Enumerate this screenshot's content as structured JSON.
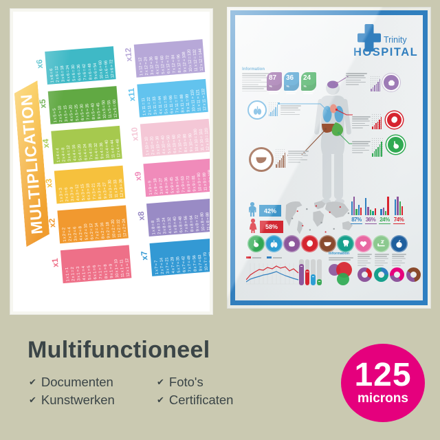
{
  "background_color": "#cac9b1",
  "left_poster": {
    "title": "MULTIPLICATION",
    "title_bg": [
      "#f9c53f",
      "#ef992e"
    ],
    "columns": [
      [
        {
          "label": "x6",
          "color": "#3fb9c6",
          "facts": [
            "1 x 6 = 6",
            "2 x 6 = 12",
            "3 x 6 = 18",
            "4 x 6 = 24",
            "5 x 6 = 30",
            "6 x 6 = 36",
            "7 x 6 = 42",
            "8 x 6 = 48",
            "9 x 6 = 54",
            "10 x 6 = 60",
            "11 x 6 = 66",
            "12 x 6 = 72"
          ]
        },
        {
          "label": "x5",
          "color": "#61a943",
          "facts": [
            "1 x 5 = 5",
            "2 x 5 = 10",
            "3 x 5 = 15",
            "4 x 5 = 20",
            "5 x 5 = 25",
            "6 x 5 = 30",
            "7 x 5 = 35",
            "8 x 5 = 40",
            "9 x 5 = 45",
            "10 x 5 = 50",
            "11 x 5 = 55",
            "12 x 5 = 60"
          ]
        },
        {
          "label": "x4",
          "color": "#a6c94e",
          "facts": [
            "1 x 4 = 4",
            "2 x 4 = 8",
            "3 x 4 = 12",
            "4 x 4 = 16",
            "5 x 4 = 20",
            "6 x 4 = 24",
            "7 x 4 = 28",
            "8 x 4 = 32",
            "9 x 4 = 36",
            "10 x 4 = 40",
            "11 x 4 = 44",
            "12 x 4 = 48"
          ]
        },
        {
          "label": "x3",
          "color": "#f6c13d",
          "facts": [
            "1 x 3 = 3",
            "2 x 3 = 6",
            "3 x 3 = 9",
            "4 x 3 = 12",
            "5 x 3 = 15",
            "6 x 3 = 18",
            "7 x 3 = 21",
            "8 x 3 = 24",
            "9 x 3 = 27",
            "10 x 3 = 30",
            "11 x 3 = 33",
            "12 x 3 = 36"
          ]
        },
        {
          "label": "x2",
          "color": "#f1992f",
          "facts": [
            "1 x 2 = 2",
            "2 x 2 = 4",
            "3 x 2 = 6",
            "4 x 2 = 8",
            "5 x 2 = 10",
            "6 x 2 = 12",
            "7 x 2 = 14",
            "8 x 2 = 16",
            "9 x 2 = 18",
            "10 x 2 = 20",
            "11 x 2 = 22",
            "12 x 2 = 24"
          ]
        },
        {
          "label": "x1",
          "color": "#ee7088",
          "facts": [
            "1 x 1 = 1",
            "2 x 1 = 2",
            "3 x 1 = 3",
            "4 x 1 = 4",
            "5 x 1 = 5",
            "6 x 1 = 6",
            "7 x 1 = 7",
            "8 x 1 = 8",
            "9 x 1 = 9",
            "10 x 1 = 10",
            "11 x 1 = 11",
            "12 x 1 = 12"
          ]
        }
      ],
      [
        {
          "label": "x12",
          "color": "#b7a8d8",
          "facts": [
            "1 x 12 = 12",
            "2 x 12 = 24",
            "3 x 12 = 36",
            "4 x 12 = 48",
            "5 x 12 = 60",
            "6 x 12 = 72",
            "7 x 12 = 84",
            "8 x 12 = 96",
            "9 x 12 = 108",
            "10 x 12 = 120",
            "11 x 12 = 132",
            "12 x 12 = 144"
          ]
        },
        {
          "label": "x11",
          "color": "#62c3ee",
          "facts": [
            "1 x 11 = 11",
            "2 x 11 = 22",
            "3 x 11 = 33",
            "4 x 11 = 44",
            "5 x 11 = 55",
            "6 x 11 = 66",
            "7 x 11 = 77",
            "8 x 11 = 88",
            "9 x 11 = 99",
            "10 x 11 = 110",
            "11 x 11 = 121",
            "12 x 11 = 132"
          ]
        },
        {
          "label": "x10",
          "color": "#f4c7d6",
          "facts": [
            "1 x 10 = 10",
            "2 x 10 = 20",
            "3 x 10 = 30",
            "4 x 10 = 40",
            "5 x 10 = 50",
            "6 x 10 = 60",
            "7 x 10 = 70",
            "8 x 10 = 80",
            "9 x 10 = 90",
            "10 x 10 = 100",
            "11 x 10 = 110",
            "12 x 10 = 120"
          ]
        },
        {
          "label": "x9",
          "color": "#f08bba",
          "facts": [
            "1 x 9 = 9",
            "2 x 9 = 18",
            "3 x 9 = 27",
            "4 x 9 = 36",
            "5 x 9 = 45",
            "6 x 9 = 54",
            "7 x 9 = 63",
            "8 x 9 = 72",
            "9 x 9 = 81",
            "10 x 9 = 90",
            "11 x 9 = 99",
            "12 x 9 = 108"
          ]
        },
        {
          "label": "x8",
          "color": "#998bc5",
          "facts": [
            "1 x 8 = 8",
            "2 x 8 = 16",
            "3 x 8 = 24",
            "4 x 8 = 32",
            "5 x 8 = 40",
            "6 x 8 = 48",
            "7 x 8 = 56",
            "8 x 8 = 64",
            "9 x 8 = 72",
            "10 x 8 = 80",
            "11 x 8 = 88",
            "12 x 8 = 96"
          ]
        },
        {
          "label": "x7",
          "color": "#3399d4",
          "facts": [
            "1 x 7 = 7",
            "2 x 7 = 14",
            "3 x 7 = 21",
            "4 x 7 = 28",
            "5 x 7 = 35",
            "6 x 7 = 42",
            "7 x 7 = 49",
            "8 x 7 = 56",
            "9 x 7 = 63",
            "10 x 7 = 70",
            "11 x 7 = 77",
            "12 x 7 = 84"
          ]
        }
      ]
    ]
  },
  "right_poster": {
    "frame_color": "#2e7fc1",
    "logo": {
      "name": "Trinity",
      "subtitle": "HOSPITAL",
      "color": "#2e7fc1"
    },
    "info_heading": "Information",
    "badges": [
      {
        "value": "87",
        "unit": "%",
        "color": "#8d569c"
      },
      {
        "value": "36",
        "unit": "%",
        "color": "#3a96cc"
      },
      {
        "value": "24",
        "unit": "%",
        "color": "#3caa57"
      }
    ],
    "gender": {
      "male_value": "42%",
      "male_color": "#3a96cc",
      "female_value": "58%",
      "female_color": "#d8232e"
    },
    "mini_stats": [
      {
        "value": "87%",
        "color": "#2e7fc1",
        "bars": [
          {
            "h": 20,
            "c": "#2e7fc1"
          },
          {
            "h": 27,
            "c": "#8d569c"
          },
          {
            "h": 9,
            "c": "#3caa57"
          },
          {
            "h": 15,
            "c": "#2e7fc1"
          },
          {
            "h": 11,
            "c": "#d8232e"
          }
        ]
      },
      {
        "value": "36%",
        "color": "#8d569c",
        "bars": [
          {
            "h": 25,
            "c": "#2e7fc1"
          },
          {
            "h": 12,
            "c": "#8d569c"
          },
          {
            "h": 8,
            "c": "#3caa57"
          },
          {
            "h": 6,
            "c": "#17a08c"
          },
          {
            "h": 10,
            "c": "#d8232e"
          }
        ]
      },
      {
        "value": "24%",
        "color": "#3caa57",
        "bars": [
          {
            "h": 9,
            "c": "#2e7fc1"
          },
          {
            "h": 11,
            "c": "#8d569c"
          },
          {
            "h": 6,
            "c": "#3caa57"
          },
          {
            "h": 27,
            "c": "#d8232e"
          }
        ]
      },
      {
        "value": "74%",
        "color": "#d8232e",
        "bars": [
          {
            "h": 23,
            "c": "#2e7fc1"
          },
          {
            "h": 27,
            "c": "#8d569c"
          },
          {
            "h": 20,
            "c": "#3caa57"
          },
          {
            "h": 13,
            "c": "#d8232e"
          }
        ]
      }
    ],
    "organ_icons": [
      {
        "name": "stomach",
        "color": "#2faa52"
      },
      {
        "name": "lungs",
        "color": "#2d9fd6"
      },
      {
        "name": "brain",
        "color": "#8d569c"
      },
      {
        "name": "organ",
        "color": "#d8232e"
      },
      {
        "name": "liver",
        "color": "#8a4a2c"
      },
      {
        "name": "tooth",
        "color": "#17a08c"
      },
      {
        "name": "heart",
        "color": "#e868a2"
      },
      {
        "name": "sleep",
        "color": "#8cc98f"
      },
      {
        "name": "apple",
        "color": "#1f5f9e"
      }
    ],
    "column_chart": {
      "track": "#d3d5d5",
      "bars": [
        {
          "h": 31,
          "c": "#8d569c"
        },
        {
          "h": 23,
          "c": "#d8232e"
        },
        {
          "h": 16,
          "c": "#2d9fd6"
        },
        {
          "h": 9,
          "c": "#3caa57"
        }
      ]
    },
    "line_chart": {
      "red_color": "#d8232e",
      "blue_color": "#2e7fc1",
      "red": "0,28 6,21 12,17 19,13 25,14 31,10 38,12 44,8 50,11 57,9 63,15 69,12 76,18",
      "blue": "0,31 6,27 12,25 19,23 25,21 31,20 38,18 44,16 50,19 57,22 63,24 69,26 76,28"
    },
    "bubbles": [
      {
        "c": "#8d569c",
        "d": 17,
        "x": 0,
        "y": 5
      },
      {
        "c": "#d8232e",
        "d": 23,
        "x": 11,
        "y": 2
      },
      {
        "c": "#2faa52",
        "d": 18,
        "x": 12,
        "y": 18
      }
    ],
    "donuts": [
      {
        "base": "#8d569c",
        "seg": "#d8232e",
        "a0": 20,
        "a1": 120
      },
      {
        "base": "#17a08c",
        "seg": "#2e7fc1",
        "a0": 0,
        "a1": 90
      },
      {
        "base": "#e6007d",
        "seg": "#8d569c",
        "a0": 150,
        "a1": 260
      },
      {
        "base": "#8a4a2c",
        "seg": "#8d569c",
        "a0": 170,
        "a1": 300
      }
    ]
  },
  "footer": {
    "heading": "Multifunctioneel",
    "check_glyph": "✔",
    "features": [
      "Documenten",
      "Kunstwerken",
      "Foto's",
      "Certificaten"
    ],
    "badge": {
      "value": "125",
      "unit": "microns",
      "color": "#e5007d"
    }
  }
}
